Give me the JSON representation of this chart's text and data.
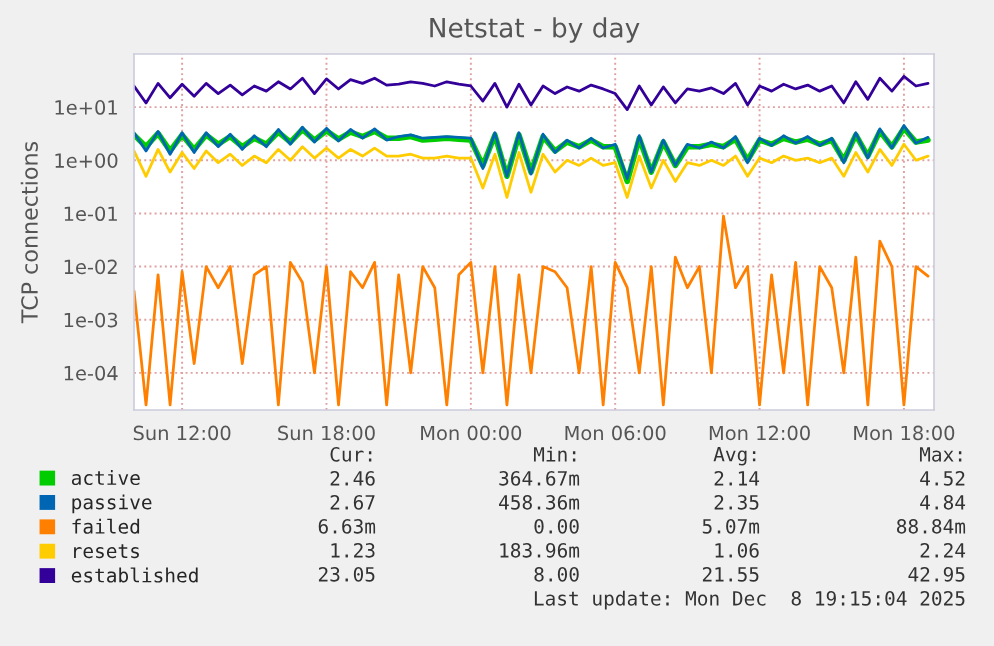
{
  "chart_data": {
    "type": "line",
    "title": "Netstat - by day",
    "ylabel": "TCP connections",
    "log": "y",
    "grid": true,
    "legend": "bottom left",
    "line_style": "solid",
    "x": [
      "2025-12-07T10:00",
      "2025-12-07T10:30",
      "2025-12-07T11:00",
      "2025-12-07T11:30",
      "2025-12-07T12:00",
      "2025-12-07T12:30",
      "2025-12-07T13:00",
      "2025-12-07T13:30",
      "2025-12-07T14:00",
      "2025-12-07T14:30",
      "2025-12-07T15:00",
      "2025-12-07T15:30",
      "2025-12-07T16:00",
      "2025-12-07T16:30",
      "2025-12-07T17:00",
      "2025-12-07T17:30",
      "2025-12-07T18:00",
      "2025-12-07T18:30",
      "2025-12-07T19:00",
      "2025-12-07T19:30",
      "2025-12-07T20:00",
      "2025-12-07T20:30",
      "2025-12-07T21:00",
      "2025-12-07T21:30",
      "2025-12-07T22:00",
      "2025-12-07T22:30",
      "2025-12-07T23:00",
      "2025-12-07T23:30",
      "2025-12-08T00:00",
      "2025-12-08T00:30",
      "2025-12-08T01:00",
      "2025-12-08T01:30",
      "2025-12-08T02:00",
      "2025-12-08T02:30",
      "2025-12-08T03:00",
      "2025-12-08T03:30",
      "2025-12-08T04:00",
      "2025-12-08T04:30",
      "2025-12-08T05:00",
      "2025-12-08T05:30",
      "2025-12-08T06:00",
      "2025-12-08T06:30",
      "2025-12-08T07:00",
      "2025-12-08T07:30",
      "2025-12-08T08:00",
      "2025-12-08T08:30",
      "2025-12-08T09:00",
      "2025-12-08T09:30",
      "2025-12-08T10:00",
      "2025-12-08T10:30",
      "2025-12-08T11:00",
      "2025-12-08T11:30",
      "2025-12-08T12:00",
      "2025-12-08T12:30",
      "2025-12-08T13:00",
      "2025-12-08T13:30",
      "2025-12-08T14:00",
      "2025-12-08T14:30",
      "2025-12-08T15:00",
      "2025-12-08T15:30",
      "2025-12-08T16:00",
      "2025-12-08T16:30",
      "2025-12-08T17:00",
      "2025-12-08T17:30",
      "2025-12-08T18:00",
      "2025-12-08T18:30",
      "2025-12-08T19:00"
    ],
    "xlim": [
      "2025-12-07T10:00",
      "2025-12-08T19:15"
    ],
    "xticks": [
      {
        "value": "2025-12-07T12:00",
        "label": "Sun 12:00"
      },
      {
        "value": "2025-12-07T18:00",
        "label": "Sun 18:00"
      },
      {
        "value": "2025-12-08T00:00",
        "label": "Mon 00:00"
      },
      {
        "value": "2025-12-08T06:00",
        "label": "Mon 06:00"
      },
      {
        "value": "2025-12-08T12:00",
        "label": "Mon 12:00"
      },
      {
        "value": "2025-12-08T18:00",
        "label": "Mon 18:00"
      }
    ],
    "ylim": [
      2e-05,
      100
    ],
    "yticks": [
      {
        "value": 0.0001,
        "label": "1e-04"
      },
      {
        "value": 0.001,
        "label": "1e-03"
      },
      {
        "value": 0.01,
        "label": "1e-02"
      },
      {
        "value": 0.1,
        "label": "1e-01"
      },
      {
        "value": 1,
        "label": "1e+00"
      },
      {
        "value": 10,
        "label": "1e+01"
      }
    ],
    "series": [
      {
        "name": "active",
        "color": "#00cc00",
        "values": [
          3,
          1.8,
          3.2,
          1.5,
          3,
          1.6,
          3,
          2,
          2.8,
          1.8,
          2.6,
          2,
          3.4,
          2.2,
          3.8,
          2.4,
          3.6,
          2.5,
          3.4,
          2.8,
          3.5,
          2.6,
          2.6,
          2.8,
          2.4,
          2.5,
          2.6,
          2.5,
          2.4,
          0.8,
          3,
          0.5,
          3,
          0.6,
          2.8,
          1.5,
          2.2,
          1.8,
          2.4,
          1.8,
          1.8,
          0.4,
          2.6,
          0.6,
          2.2,
          0.8,
          1.8,
          1.8,
          2,
          1.8,
          2.5,
          1,
          2.4,
          2,
          2.6,
          2.2,
          2.5,
          2,
          2.4,
          1,
          3,
          1.2,
          3.5,
          1.8,
          4,
          2.2,
          2.4
        ]
      },
      {
        "name": "passive",
        "color": "#0066b3",
        "values": [
          3.3,
          1.5,
          3.5,
          1.3,
          3.3,
          1.4,
          3.3,
          1.8,
          3.1,
          1.6,
          2.9,
          1.8,
          3.8,
          2,
          4.2,
          2.2,
          4,
          2.3,
          3.8,
          2.6,
          3.9,
          2.4,
          2.8,
          3,
          2.6,
          2.7,
          2.8,
          2.7,
          2.6,
          0.7,
          3.3,
          0.5,
          3.3,
          0.55,
          3.1,
          1.4,
          2.4,
          1.7,
          2.6,
          1.7,
          2,
          0.45,
          2.9,
          0.6,
          2.4,
          0.8,
          2,
          1.7,
          2.2,
          1.7,
          2.8,
          0.9,
          2.6,
          1.9,
          2.9,
          2.1,
          2.8,
          1.9,
          2.6,
          0.9,
          3.3,
          1.1,
          3.9,
          1.7,
          4.5,
          2.1,
          2.7
        ]
      },
      {
        "name": "failed",
        "color": "#ff8000",
        "values": [
          0.0035,
          2.5e-05,
          0.007,
          2.5e-05,
          0.008,
          0.00015,
          0.01,
          0.004,
          0.01,
          0.00015,
          0.007,
          0.01,
          2.5e-05,
          0.012,
          0.005,
          0.0001,
          0.01,
          2.5e-05,
          0.008,
          0.004,
          0.012,
          2.5e-05,
          0.007,
          0.0001,
          0.01,
          0.004,
          2.5e-05,
          0.007,
          0.012,
          0.0001,
          0.01,
          2.5e-05,
          0.007,
          0.0001,
          0.01,
          0.008,
          0.004,
          0.0001,
          0.01,
          2.5e-05,
          0.012,
          0.004,
          0.0001,
          0.01,
          2.5e-05,
          0.015,
          0.004,
          0.01,
          0.0001,
          0.089,
          0.004,
          0.01,
          2.5e-05,
          0.007,
          0.0001,
          0.012,
          2.5e-05,
          0.01,
          0.004,
          0.0001,
          0.015,
          2.5e-05,
          0.03,
          0.01,
          2.5e-05,
          0.01,
          0.0066
        ]
      },
      {
        "name": "resets",
        "color": "#ffcc00",
        "values": [
          1.5,
          0.5,
          1.6,
          0.6,
          1.4,
          0.7,
          1.5,
          0.9,
          1.3,
          0.8,
          1.2,
          0.9,
          1.6,
          1,
          1.8,
          1.1,
          1.7,
          1.1,
          1.6,
          1.2,
          1.7,
          1.2,
          1.2,
          1.3,
          1.1,
          1.1,
          1.2,
          1.1,
          1.1,
          0.3,
          1.3,
          0.2,
          1.4,
          0.25,
          1.3,
          0.6,
          1,
          0.8,
          1.1,
          0.8,
          0.9,
          0.2,
          1.2,
          0.3,
          1,
          0.4,
          0.9,
          0.8,
          1,
          0.8,
          1.2,
          0.5,
          1.1,
          0.9,
          1.2,
          1,
          1.1,
          0.9,
          1.1,
          0.5,
          1.4,
          0.6,
          1.6,
          0.8,
          2,
          1,
          1.2
        ]
      },
      {
        "name": "established",
        "color": "#330099",
        "values": [
          25,
          12,
          28,
          15,
          27,
          16,
          28,
          18,
          26,
          17,
          25,
          20,
          30,
          22,
          35,
          18,
          34,
          22,
          33,
          28,
          35,
          26,
          27,
          30,
          28,
          25,
          30,
          27,
          25,
          13,
          28,
          10,
          27,
          11,
          25,
          18,
          24,
          20,
          26,
          22,
          18,
          9,
          25,
          11,
          24,
          12,
          22,
          20,
          23,
          18,
          28,
          11,
          25,
          20,
          27,
          22,
          26,
          20,
          25,
          12,
          30,
          14,
          35,
          20,
          38,
          25,
          28
        ]
      }
    ],
    "annotations": [
      "Cur:",
      "Min:",
      "Avg:",
      "Max:",
      "2.46",
      "364.67m",
      "2.14",
      "4.52",
      "2.67",
      "458.36m",
      "2.35",
      "4.84",
      "6.63m",
      "0.00",
      "5.07m",
      "88.84m",
      "1.23",
      "183.96m",
      "1.06",
      "2.24",
      "23.05",
      "8.00",
      "21.55",
      "42.95",
      "Last update: Mon Dec  8 19:15:04 2025"
    ]
  }
}
